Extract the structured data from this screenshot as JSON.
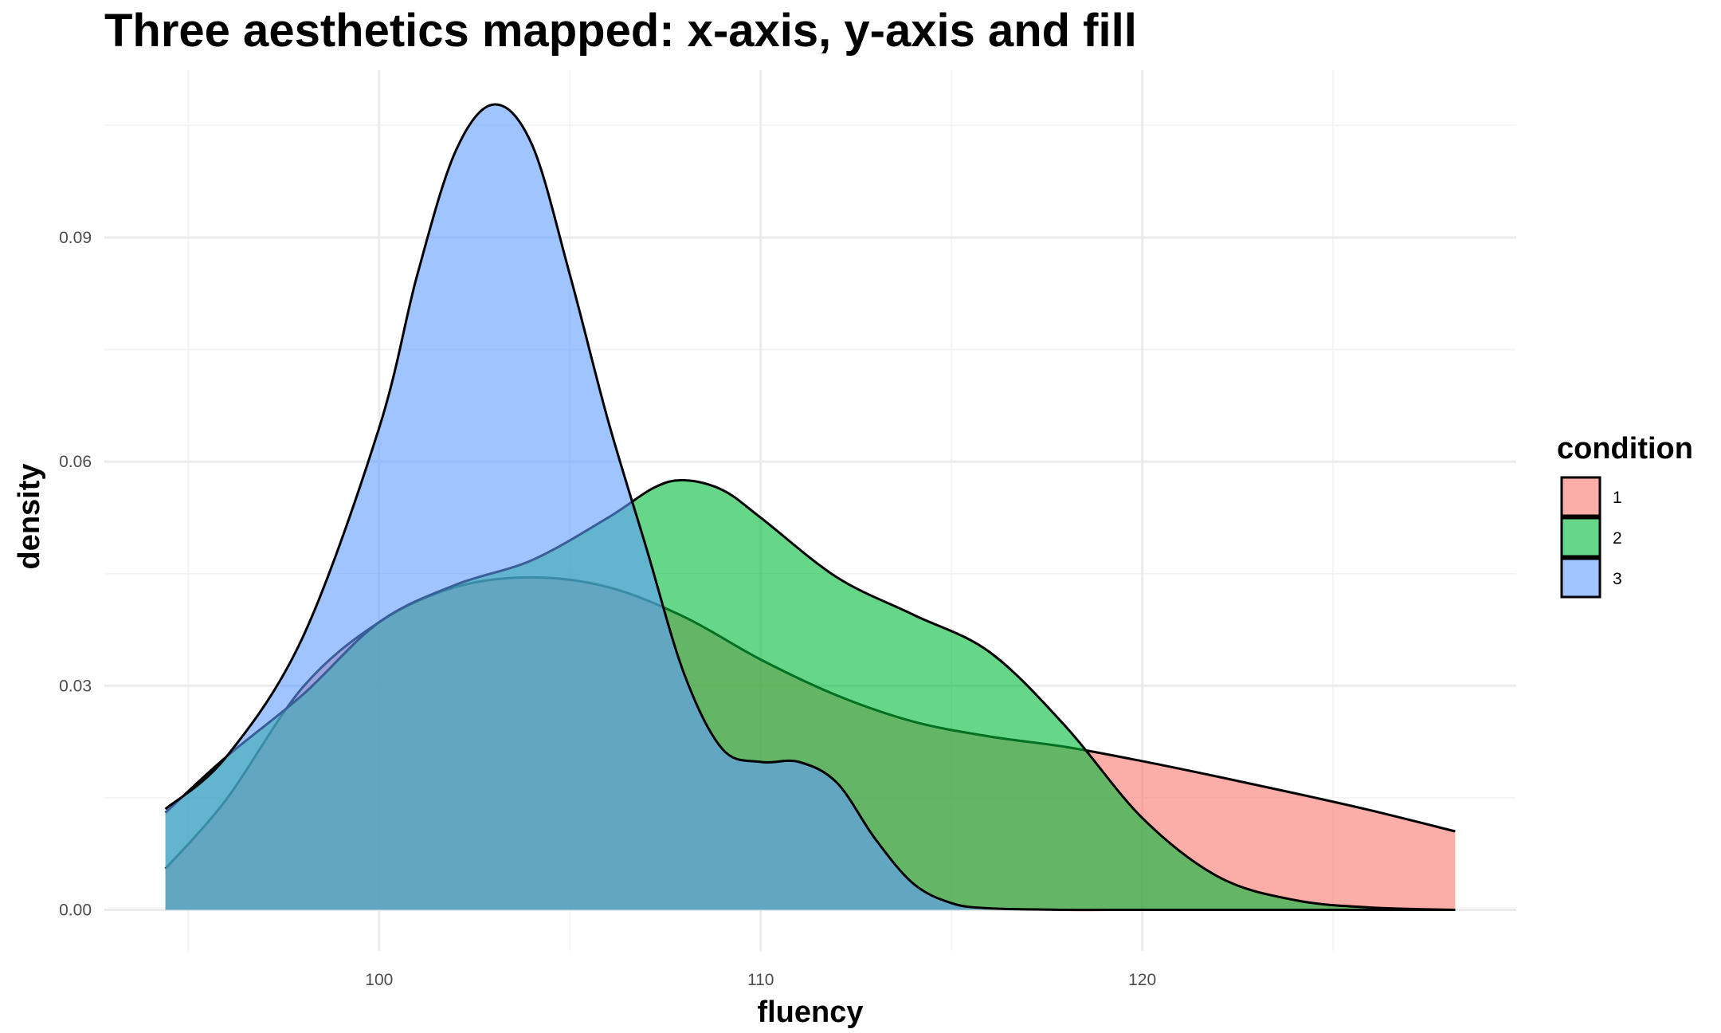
{
  "chart_data": {
    "type": "area",
    "title": "Three aesthetics mapped: x-axis, y-axis and fill",
    "xlabel": "fluency",
    "ylabel": "density",
    "xlim": [
      92.8,
      129.8
    ],
    "ylim": [
      -0.0055,
      0.1124
    ],
    "x_ticks": [
      100,
      110,
      120
    ],
    "x_tick_labels": [
      "100",
      "110",
      "120"
    ],
    "x_minor_ticks": [
      95,
      105,
      115,
      125
    ],
    "y_ticks": [
      0.0,
      0.03,
      0.06,
      0.09
    ],
    "y_tick_labels": [
      "0.00",
      "0.03",
      "0.06",
      "0.09"
    ],
    "y_minor_ticks": [
      0.015,
      0.045,
      0.075,
      0.105
    ],
    "grid": true,
    "legend": {
      "title": "condition",
      "position": "right"
    },
    "series": [
      {
        "name": "1",
        "color": "#F8766D",
        "x": [
          94.4,
          96,
          98,
          100,
          102,
          104,
          106,
          108,
          110,
          112,
          114,
          116,
          118,
          120,
          122,
          124,
          126,
          128.2
        ],
        "y": [
          0.0055,
          0.0148,
          0.0298,
          0.0385,
          0.0432,
          0.0445,
          0.0432,
          0.0392,
          0.0335,
          0.0287,
          0.0252,
          0.0232,
          0.0218,
          0.0199,
          0.0178,
          0.0156,
          0.0133,
          0.0105
        ]
      },
      {
        "name": "2",
        "color": "#00BA38",
        "x": [
          94.4,
          96,
          98,
          100,
          102,
          104,
          106,
          107.2,
          108,
          109,
          110,
          112,
          114,
          116,
          118,
          120,
          122,
          124,
          126,
          128.2
        ],
        "y": [
          0.013,
          0.0205,
          0.0288,
          0.0385,
          0.0435,
          0.0468,
          0.0525,
          0.0565,
          0.0575,
          0.0562,
          0.0525,
          0.0445,
          0.0395,
          0.0345,
          0.0245,
          0.0123,
          0.0044,
          0.0013,
          0.0003,
          0.0
        ]
      },
      {
        "name": "3",
        "color": "#619CFF",
        "x": [
          94.4,
          96,
          98,
          100,
          101,
          102,
          103,
          104,
          105,
          106,
          107,
          108,
          109,
          110,
          111,
          112,
          113,
          114,
          115,
          116,
          118,
          120,
          124,
          128.2
        ],
        "y": [
          0.0135,
          0.0205,
          0.0365,
          0.0645,
          0.085,
          0.1015,
          0.1078,
          0.1025,
          0.085,
          0.0655,
          0.0485,
          0.0315,
          0.0215,
          0.0198,
          0.0198,
          0.017,
          0.0095,
          0.0035,
          0.0009,
          0.0002,
          0.0,
          0.0,
          0.0,
          0.0
        ]
      }
    ]
  }
}
